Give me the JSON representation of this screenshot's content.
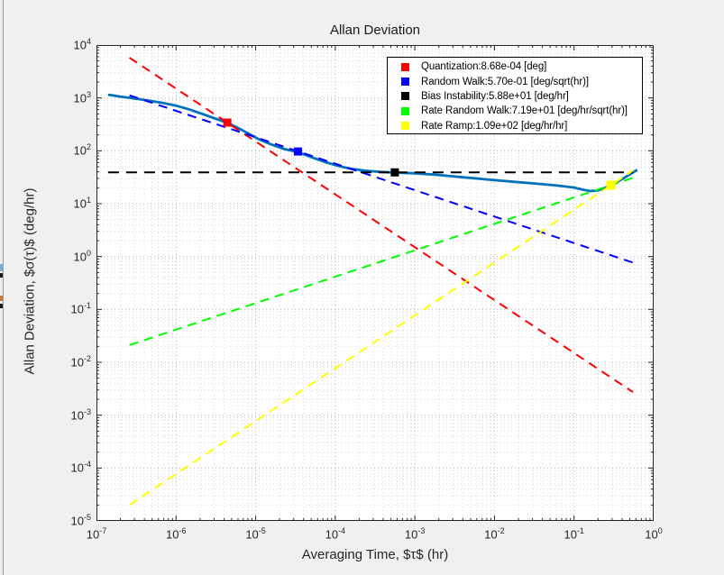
{
  "window": {
    "figure_background": "#f0f0f0"
  },
  "chart_data": {
    "type": "line",
    "title": "Allan Deviation",
    "xlabel": "Averaging Time, $τ$ (hr)",
    "ylabel": "Allan Deviation, $σ(τ)$ (deg/hr)",
    "xscale": "log",
    "yscale": "log",
    "xlim": [
      1e-07,
      1
    ],
    "ylim": [
      1e-05,
      10000
    ],
    "x_tick_exponents": [
      -7,
      -6,
      -5,
      -4,
      -3,
      -2,
      -1,
      0
    ],
    "y_tick_exponents": [
      4,
      3,
      2,
      1,
      0,
      -1,
      -2,
      -3,
      -4,
      -5
    ],
    "grid": true,
    "minor_grid": true,
    "legend_position": "northeast",
    "colors": {
      "axis": "#262626",
      "grid": "#b0b0b0",
      "minor_grid": "#d7d7d7",
      "plot_background": "#ffffff",
      "data_line": "#0072bd"
    },
    "series": [
      {
        "name": "allan-deviation-data",
        "color": "#0072bd",
        "line_style": "solid",
        "line_width": 2.8,
        "points": [
          [
            1.4e-07,
            1150
          ],
          [
            2e-07,
            1060
          ],
          [
            3e-07,
            975
          ],
          [
            4.5e-07,
            890
          ],
          [
            7e-07,
            800
          ],
          [
            1e-06,
            715
          ],
          [
            1.5e-06,
            600
          ],
          [
            2.2e-06,
            490
          ],
          [
            3.2e-06,
            400
          ],
          [
            4.4e-06,
            340
          ],
          [
            6e-06,
            270
          ],
          [
            8e-06,
            215
          ],
          [
            1.1e-05,
            165
          ],
          [
            1.6e-05,
            130
          ],
          [
            2.3e-05,
            108
          ],
          [
            3.4e-05,
            94
          ],
          [
            5e-05,
            76
          ],
          [
            7.5e-05,
            61
          ],
          [
            0.00011,
            51.5
          ],
          [
            0.00016,
            45.5
          ],
          [
            0.00024,
            42
          ],
          [
            0.00036,
            40
          ],
          [
            0.00056,
            38.8
          ],
          [
            0.001,
            37.6
          ],
          [
            0.0018,
            35.4
          ],
          [
            0.0032,
            32.6
          ],
          [
            0.0056,
            30.2
          ],
          [
            0.01,
            27.9
          ],
          [
            0.018,
            25.9
          ],
          [
            0.032,
            24.1
          ],
          [
            0.056,
            22.4
          ],
          [
            0.1,
            20.2
          ],
          [
            0.13,
            18.4
          ],
          [
            0.16,
            17.3
          ],
          [
            0.2,
            17.8
          ],
          [
            0.25,
            20.0
          ],
          [
            0.29,
            22.4
          ],
          [
            0.35,
            26.0
          ],
          [
            0.43,
            31.0
          ],
          [
            0.52,
            37.0
          ],
          [
            0.62,
            43.5
          ]
        ]
      },
      {
        "name": "quantization-fit",
        "color": "#ff0000",
        "line_style": "dashed",
        "line_width": 2,
        "points": [
          [
            2.6e-07,
            5780
          ],
          [
            0.55,
            0.00273
          ]
        ]
      },
      {
        "name": "random-walk-fit",
        "color": "#0000ff",
        "line_style": "dashed",
        "line_width": 2,
        "points": [
          [
            2.6e-07,
            1118
          ],
          [
            0.55,
            0.769
          ]
        ]
      },
      {
        "name": "bias-instability-fit",
        "color": "#000000",
        "line_style": "dashed",
        "line_width": 2,
        "points": [
          [
            1.4e-07,
            39
          ],
          [
            0.55,
            39
          ]
        ]
      },
      {
        "name": "rate-random-walk-fit",
        "color": "#00ff00",
        "line_style": "dashed",
        "line_width": 2,
        "points": [
          [
            2.6e-07,
            0.0212
          ],
          [
            0.55,
            30.8
          ]
        ]
      },
      {
        "name": "rate-ramp-fit",
        "color": "#ffff00",
        "line_style": "dashed",
        "line_width": 2,
        "points": [
          [
            2.6e-07,
            2e-05
          ],
          [
            0.55,
            42.4
          ]
        ]
      }
    ],
    "markers": [
      {
        "name": "quantization-marker",
        "color": "#ff0000",
        "tau": 4.4e-06,
        "sigma": 342,
        "size": 9
      },
      {
        "name": "random-walk-marker",
        "color": "#0000ff",
        "tau": 3.4e-05,
        "sigma": 97,
        "size": 9
      },
      {
        "name": "bias-instability-marker",
        "color": "#000000",
        "tau": 0.00056,
        "sigma": 39,
        "size": 9
      },
      {
        "name": "rate-ramp-marker",
        "color": "#ffff00",
        "tau": 0.29,
        "sigma": 22.4,
        "size": 10
      }
    ],
    "legend": {
      "border_color": "#000000",
      "background": "#ffffff",
      "entries": [
        {
          "label": "Quantization:8.68e-04 [deg]",
          "color": "#ff0000"
        },
        {
          "label": "Random Walk:5.70e-01 [deg/sqrt(hr)]",
          "color": "#0000ff"
        },
        {
          "label": "Bias Instability:5.88e+01 [deg/hr]",
          "color": "#000000"
        },
        {
          "label": "Rate Random Walk:7.19e+01 [deg/hr/sqrt(hr)]",
          "color": "#00ff00"
        },
        {
          "label": "Rate Ramp:1.09e+02 [deg/hr/hr]",
          "color": "#ffff00"
        }
      ]
    }
  },
  "left_edge_artifact": {
    "line_color": "#9b9b9b",
    "marks": [
      {
        "color": "#74b2d4",
        "y": 293,
        "h": 8
      },
      {
        "color": "#1a1a1a",
        "y": 303,
        "h": 5
      },
      {
        "color": "#c87d3c",
        "y": 328,
        "h": 6
      },
      {
        "color": "#1a1a1a",
        "y": 337,
        "h": 5
      }
    ]
  }
}
